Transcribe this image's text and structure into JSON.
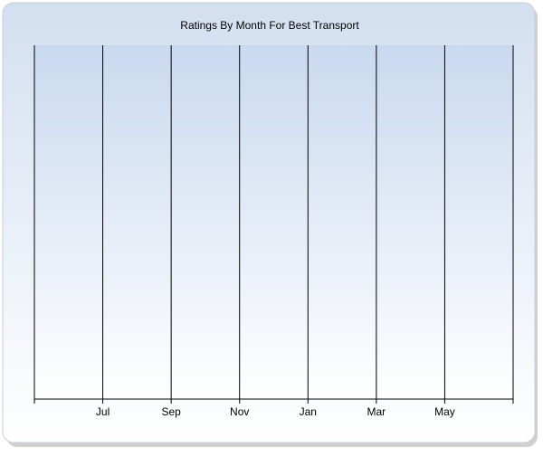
{
  "chart_data": {
    "type": "line",
    "title": "Ratings By Month For Best Transport",
    "categories": [
      null,
      "Jul",
      "Sep",
      "Nov",
      "Jan",
      "Mar",
      "May",
      null
    ],
    "grid": true
  }
}
